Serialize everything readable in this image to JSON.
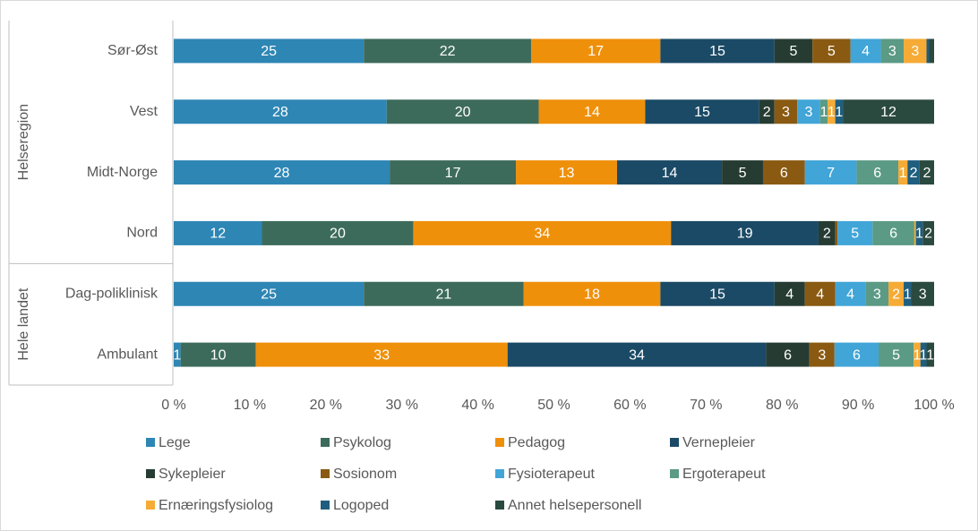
{
  "chart_data": {
    "type": "stacked-bar-horizontal",
    "categories": [
      "Sør-Øst",
      "Vest",
      "Midt-Norge",
      "Nord",
      "Dag-poliklinisk",
      "Ambulant"
    ],
    "groups": [
      {
        "name": "Helseregion",
        "size": 4
      },
      {
        "name": "Hele landet",
        "size": 2
      }
    ],
    "xlim": [
      0,
      100
    ],
    "xticks": [
      {
        "value": 0,
        "label": "0 %"
      },
      {
        "value": 10,
        "label": "10 %"
      },
      {
        "value": 20,
        "label": "20 %"
      },
      {
        "value": 30,
        "label": "30 %"
      },
      {
        "value": 40,
        "label": "40 %"
      },
      {
        "value": 50,
        "label": "50 %"
      },
      {
        "value": 60,
        "label": "60 %"
      },
      {
        "value": 70,
        "label": "70 %"
      },
      {
        "value": 80,
        "label": "80 %"
      },
      {
        "value": 90,
        "label": "90 %"
      },
      {
        "value": 100,
        "label": "100 %"
      }
    ],
    "legend": "bottom",
    "series": [
      {
        "name": "Lege",
        "color": "#2e86b4",
        "values": [
          25,
          28,
          28.4,
          11.6,
          25,
          0.9
        ],
        "value_labels": [
          "25",
          "28",
          "28",
          "12",
          "25",
          "1"
        ]
      },
      {
        "name": "Psykolog",
        "color": "#3d6b5b",
        "values": [
          22,
          20,
          16.6,
          19.9,
          21,
          9.9
        ],
        "value_labels": [
          "22",
          "20",
          "17",
          "20",
          "21",
          "10"
        ]
      },
      {
        "name": "Pedagog",
        "color": "#ef900b",
        "values": [
          17,
          14,
          13.3,
          33.9,
          18,
          33.1
        ],
        "value_labels": [
          "17",
          "14",
          "13",
          "34",
          "18",
          "33"
        ]
      },
      {
        "name": "Vernepleier",
        "color": "#1b4a66",
        "values": [
          15,
          15,
          13.8,
          19.4,
          15,
          34
        ],
        "value_labels": [
          "15",
          "15",
          "14",
          "19",
          "15",
          "34"
        ]
      },
      {
        "name": "Sykepleier",
        "color": "#263c33",
        "values": [
          5,
          2,
          5.4,
          2.2,
          4,
          5.7
        ],
        "value_labels": [
          "5",
          "2",
          "5",
          "2",
          "4",
          "6"
        ]
      },
      {
        "name": "Sosionom",
        "color": "#8a5a12",
        "values": [
          5,
          3,
          5.5,
          0.3,
          4,
          3.3
        ],
        "value_labels": [
          "5",
          "3",
          "6",
          null,
          "4",
          "3"
        ]
      },
      {
        "name": "Fysioterapeut",
        "color": "#41a5d8",
        "values": [
          4,
          3,
          6.8,
          4.6,
          4,
          5.8
        ],
        "value_labels": [
          "4",
          "3",
          "7",
          "5",
          "4",
          "6"
        ]
      },
      {
        "name": "Ergoterapeut",
        "color": "#5b9a85",
        "values": [
          3,
          1,
          5.5,
          5.5,
          3,
          4.6
        ],
        "value_labels": [
          "3",
          "1",
          "6",
          "6",
          "3",
          "5"
        ]
      },
      {
        "name": "Ernæringsfysiolog",
        "color": "#f5ab35",
        "values": [
          3,
          1,
          1.2,
          0.2,
          2,
          0.9
        ],
        "value_labels": [
          "3",
          "1",
          "1",
          null,
          "2",
          "1"
        ]
      },
      {
        "name": "Logoped",
        "color": "#1f5e7e",
        "values": [
          0.3,
          1,
          1.6,
          0.9,
          1,
          0.8
        ],
        "value_labels": [
          null,
          "1",
          "2",
          "1",
          "1",
          "1"
        ]
      },
      {
        "name": "Annet helsepersonell",
        "color": "#2b4a3f",
        "values": [
          0.7,
          12,
          1.9,
          1.5,
          3,
          1.0
        ],
        "value_labels": [
          null,
          "12",
          "2",
          "2",
          "3",
          "1"
        ]
      }
    ]
  }
}
